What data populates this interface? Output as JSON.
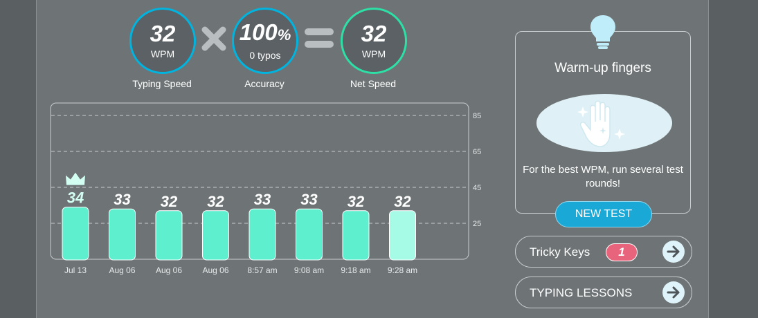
{
  "stats": [
    {
      "value": "32",
      "unit": "WPM",
      "label": "Typing Speed",
      "ring_color": "#00b4e0"
    },
    {
      "value": "100",
      "value_suffix": "%",
      "unit": "0 typos",
      "label": "Accuracy",
      "ring_color": "#00b4e0"
    },
    {
      "value": "32",
      "unit": "WPM",
      "label": "Net Speed",
      "ring_color": "#2de0a6"
    }
  ],
  "operators": {
    "multiply_icon": "times-icon",
    "equals_icon": "equals-icon"
  },
  "chart_data": {
    "type": "bar",
    "categories": [
      "Jul 13",
      "Aug 06",
      "Aug 06",
      "Aug 06",
      "8:57 am",
      "9:08 am",
      "9:18 am",
      "9:28 am"
    ],
    "values": [
      34,
      33,
      32,
      32,
      33,
      33,
      32,
      32
    ],
    "value_labels": [
      "34",
      "33",
      "32",
      "32",
      "33",
      "33",
      "32",
      "32"
    ],
    "y_ticks": [
      "85",
      "65",
      "45",
      "25"
    ],
    "y_tick_values": [
      85,
      65,
      45,
      25
    ],
    "ylim": [
      5,
      85
    ],
    "best_index": 0,
    "highlight_index": 7,
    "bar_color": "#5eefce",
    "highlight_color": "#a6fbe6",
    "grid": true
  },
  "warmup": {
    "title": "Warm-up fingers",
    "text": "For the best WPM, run several test rounds!",
    "icon": "lightbulb-icon",
    "image_icon": "sparkle-hand-icon"
  },
  "new_test_label": "NEW TEST",
  "tricky_keys": {
    "label": "Tricky Keys",
    "count": "1"
  },
  "typing_lessons": {
    "label": "TYPING LESSONS"
  }
}
